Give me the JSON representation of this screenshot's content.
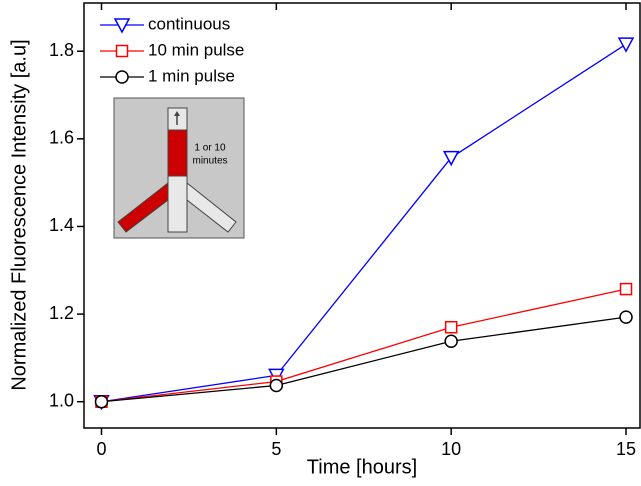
{
  "chart_data": {
    "type": "line",
    "x_label": "Time [hours]",
    "y_label": "Normalized Fluorescence Intensity [a.u]",
    "x": [
      0,
      5,
      10,
      15
    ],
    "series": [
      {
        "name": "continuous",
        "color": "#0000ff",
        "marker": "triangle-down",
        "values": [
          1.0,
          1.06,
          1.557,
          1.816
        ]
      },
      {
        "name": "10 min pulse",
        "color": "#ff0000",
        "marker": "square",
        "values": [
          1.0,
          1.046,
          1.17,
          1.257
        ]
      },
      {
        "name": "1 min pulse",
        "color": "#000000",
        "marker": "circle",
        "values": [
          1.0,
          1.037,
          1.138,
          1.193
        ]
      }
    ],
    "xlim": [
      -0.5,
      15.4
    ],
    "xticks": [
      0,
      5,
      10,
      15
    ],
    "ylim": [
      0.94,
      1.91
    ],
    "yticks": [
      {
        "value": 1.0,
        "label": "1.0"
      },
      1.2,
      1.4,
      1.6,
      1.8
    ],
    "legend": "upper-left",
    "annotations": [
      "1 or 10",
      "minutes"
    ]
  }
}
